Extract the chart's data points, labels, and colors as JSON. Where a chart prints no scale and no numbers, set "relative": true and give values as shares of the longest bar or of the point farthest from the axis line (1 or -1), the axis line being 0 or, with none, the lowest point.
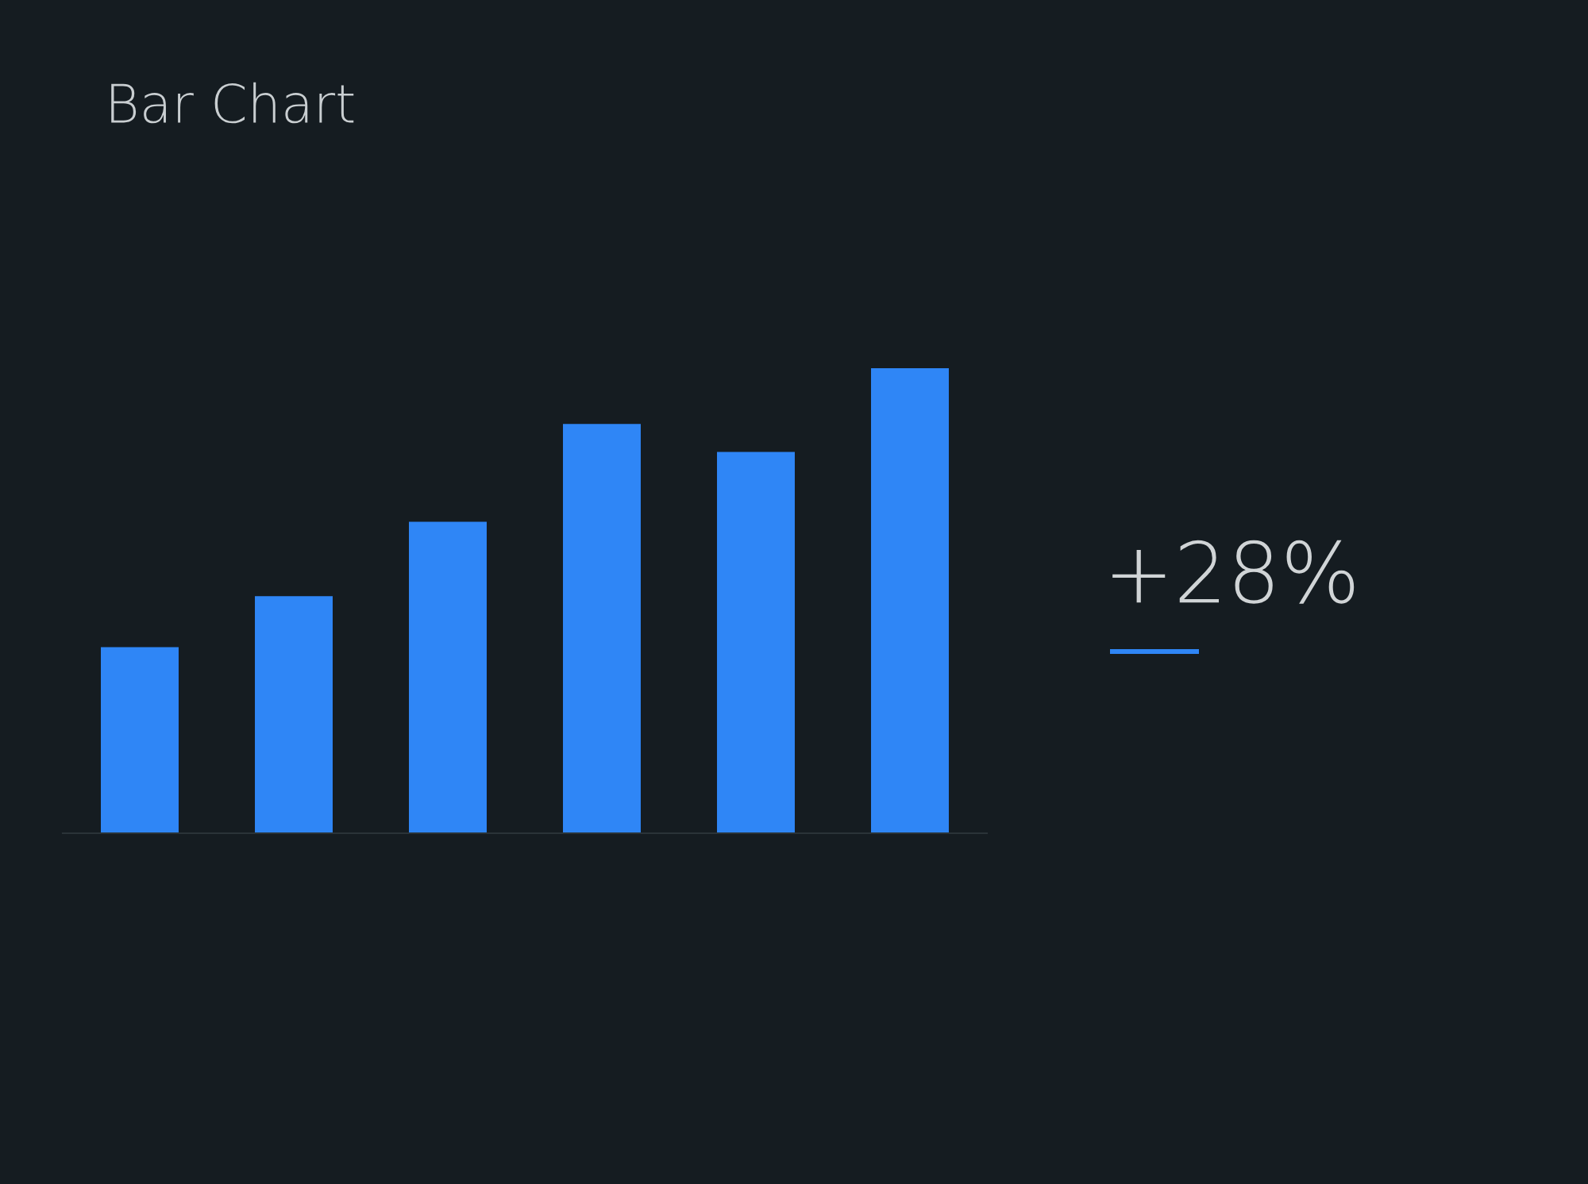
{
  "chart_data": {
    "type": "bar",
    "title": "Bar Chart",
    "relative": true,
    "categories": [
      null,
      null,
      null,
      null,
      null,
      null
    ],
    "values": [
      0.4,
      0.51,
      0.67,
      0.88,
      0.82,
      1.0
    ],
    "color": "#2f86f6",
    "annotations": [
      "+28%"
    ],
    "grid": false,
    "legend": false
  }
}
